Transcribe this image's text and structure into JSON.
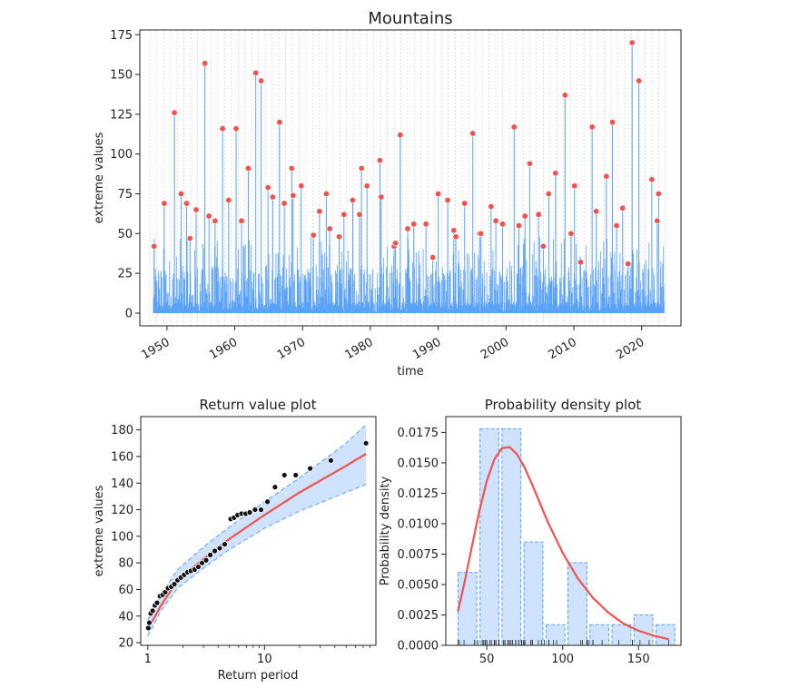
{
  "colors": {
    "signal": "#5aa2f7",
    "extreme_marker": "#ef5350",
    "fit_line": "#ef5350",
    "band_fill": "#cfe2ff",
    "band_edge": "#5aa2f7",
    "grid": "#c8c8c8",
    "axis": "#222222"
  },
  "chart_data": [
    {
      "type": "line",
      "title": "Mountains",
      "xlabel": "time",
      "ylabel": "extreme values",
      "xlim": [
        1946.0,
        2025.8
      ],
      "ylim": [
        -8,
        178
      ],
      "xticks": [
        1950,
        1960,
        1970,
        1980,
        1990,
        2000,
        2010,
        2020
      ],
      "xtick_labels": [
        "1950",
        "1960",
        "1970",
        "1980",
        "1990",
        "2000",
        "2010",
        "2020"
      ],
      "yticks": [
        0,
        25,
        50,
        75,
        100,
        125,
        150,
        175
      ],
      "ytick_labels": [
        "0",
        "25",
        "50",
        "75",
        "100",
        "125",
        "150",
        "175"
      ],
      "grid": "vertical dotted lines at block boundaries",
      "extremes": {
        "x": [
          1948.1,
          1949.6,
          1951.1,
          1952.1,
          1952.9,
          1953.4,
          1954.3,
          1955.6,
          1956.2,
          1957.1,
          1958.2,
          1959.1,
          1960.2,
          1961.0,
          1962.0,
          1963.1,
          1963.9,
          1964.9,
          1965.6,
          1966.6,
          1967.3,
          1968.4,
          1968.6,
          1969.8,
          1971.6,
          1972.5,
          1973.5,
          1974.0,
          1975.4,
          1976.1,
          1977.4,
          1978.4,
          1978.7,
          1979.5,
          1981.4,
          1981.6,
          1983.5,
          1983.7,
          1984.4,
          1985.5,
          1986.4,
          1988.2,
          1989.2,
          1990.0,
          1991.4,
          1992.3,
          1992.6,
          1993.9,
          1995.1,
          1996.1,
          1996.3,
          1997.8,
          1998.5,
          1999.5,
          2001.2,
          2001.9,
          2002.8,
          2003.5,
          2004.8,
          2005.5,
          2006.3,
          2007.3,
          2008.7,
          2009.6,
          2010.1,
          2011.0,
          2012.7,
          2013.3,
          2014.8,
          2015.7,
          2016.3,
          2017.2,
          2018.0,
          2018.6,
          2019.6,
          2021.5,
          2022.3,
          2022.5
        ],
        "y": [
          42,
          69,
          126,
          75,
          69,
          47,
          65,
          157,
          61,
          58,
          116,
          71,
          116,
          58,
          91,
          151,
          146,
          79,
          73,
          120,
          69,
          91,
          74,
          80,
          49,
          64,
          75,
          53,
          48,
          62,
          71,
          62,
          91,
          80,
          96,
          73,
          42,
          44,
          112,
          53,
          56,
          56,
          35,
          75,
          71,
          52,
          48,
          69,
          113,
          50,
          50,
          67,
          58,
          56,
          117,
          55,
          61,
          94,
          62,
          42,
          75,
          88,
          137,
          50,
          80,
          32,
          117,
          64,
          86,
          120,
          55,
          66,
          31,
          170,
          146,
          84,
          58,
          75
        ]
      }
    },
    {
      "type": "scatter",
      "title": "Return value plot",
      "xlabel": "Return period",
      "ylabel": "extreme values",
      "x_scale": "log",
      "xlim": [
        0.87,
        90
      ],
      "ylim": [
        18,
        190
      ],
      "xticks": [
        1,
        10
      ],
      "xtick_labels": [
        "1",
        "10"
      ],
      "yticks": [
        20,
        40,
        60,
        80,
        100,
        120,
        140,
        160,
        180
      ],
      "ytick_labels": [
        "20",
        "40",
        "60",
        "80",
        "100",
        "120",
        "140",
        "160",
        "180"
      ],
      "points": {
        "x": [
          1.01,
          1.03,
          1.06,
          1.1,
          1.15,
          1.2,
          1.27,
          1.34,
          1.41,
          1.49,
          1.59,
          1.69,
          1.8,
          1.92,
          2.05,
          2.19,
          2.34,
          2.52,
          2.71,
          2.92,
          3.16,
          3.43,
          3.75,
          4.13,
          4.56,
          5.13,
          5.49,
          5.88,
          6.35,
          6.9,
          7.47,
          8.3,
          9.34,
          10.6,
          12.3,
          14.8,
          18.5,
          24.6,
          37.0,
          74.0
        ],
        "y": [
          31,
          35,
          42,
          44,
          48,
          50,
          55,
          56,
          58,
          61,
          62,
          64,
          67,
          69,
          71,
          73,
          74,
          75,
          77,
          80,
          82,
          86,
          89,
          91,
          94,
          113,
          114,
          116,
          117,
          117,
          118,
          120,
          120,
          126,
          137,
          146,
          146,
          151,
          157,
          170
        ]
      },
      "fit": {
        "x": [
          1.0,
          1.3,
          1.8,
          3,
          5,
          10,
          20,
          50,
          74
        ],
        "y": [
          30,
          48,
          67,
          83,
          98,
          116,
          133,
          153,
          162
        ]
      },
      "band_upper": {
        "x": [
          1.0,
          1.3,
          1.8,
          3,
          5,
          10,
          20,
          50,
          74
        ],
        "y": [
          37,
          56,
          75,
          92,
          107,
          126,
          144,
          170,
          184
        ]
      },
      "band_lower": {
        "x": [
          1.0,
          1.3,
          1.8,
          3,
          5,
          10,
          20,
          50,
          74
        ],
        "y": [
          25,
          44,
          61,
          76,
          90,
          106,
          119,
          133,
          139
        ]
      }
    },
    {
      "type": "bar",
      "title": "Probability density plot",
      "xlabel": "",
      "ylabel": "Probability density",
      "xlim": [
        23,
        178
      ],
      "ylim": [
        0,
        0.0188
      ],
      "xticks": [
        50,
        100,
        150
      ],
      "xtick_labels": [
        "50",
        "100",
        "150"
      ],
      "yticks": [
        0,
        0.0025,
        0.005,
        0.0075,
        0.01,
        0.0125,
        0.015,
        0.0175
      ],
      "ytick_labels": [
        "0.0000",
        "0.0025",
        "0.0050",
        "0.0075",
        "0.0100",
        "0.0125",
        "0.0150",
        "0.0175"
      ],
      "bins": {
        "left": [
          30,
          44.5,
          59.0,
          73.5,
          88.0,
          102.5,
          117.0,
          131.5,
          146.0,
          160.5
        ],
        "width": 14.5,
        "values": [
          0.006,
          0.0178,
          0.0178,
          0.0085,
          0.0017,
          0.0068,
          0.0017,
          0.0017,
          0.0025,
          0.0017
        ]
      },
      "pdf": {
        "x": [
          31,
          35,
          40,
          45,
          50,
          55,
          60,
          65,
          70,
          75,
          80,
          85,
          90,
          100,
          110,
          120,
          130,
          140,
          150,
          160,
          170
        ],
        "y": [
          0.0028,
          0.005,
          0.008,
          0.011,
          0.0135,
          0.0153,
          0.0162,
          0.0163,
          0.0157,
          0.0146,
          0.0132,
          0.0117,
          0.0102,
          0.0076,
          0.0055,
          0.0039,
          0.0027,
          0.0018,
          0.0012,
          0.0008,
          0.0005
        ]
      },
      "rug": [
        31,
        32,
        35,
        42,
        42,
        44,
        47,
        48,
        48,
        49,
        50,
        50,
        52,
        53,
        55,
        55,
        56,
        56,
        58,
        58,
        58,
        61,
        62,
        62,
        62,
        64,
        64,
        65,
        66,
        67,
        69,
        69,
        69,
        71,
        71,
        73,
        73,
        74,
        75,
        75,
        75,
        75,
        79,
        80,
        80,
        80,
        84,
        86,
        88,
        91,
        91,
        94,
        96,
        112,
        113,
        116,
        116,
        117,
        117,
        120,
        120,
        126,
        137,
        146,
        146,
        151,
        157,
        170
      ]
    }
  ]
}
